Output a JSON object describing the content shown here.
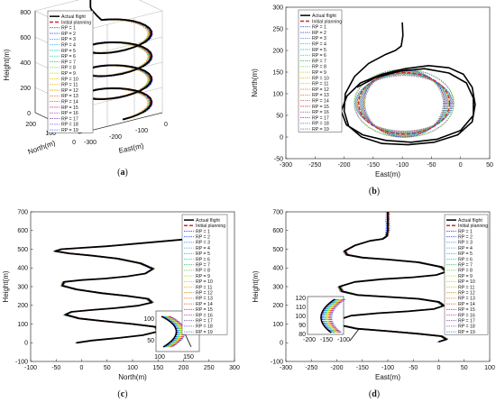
{
  "chart_data": [
    {
      "id": "a",
      "type": "line",
      "caption": "a",
      "xlabel": "East(m)",
      "ylabel": "North(m)",
      "zlabel": "Height(m)",
      "xlim": [
        -300,
        0
      ],
      "ylim": [
        0,
        200
      ],
      "zlim": [
        0,
        800
      ],
      "x_ticks": [
        "-300",
        "-200",
        "-100",
        "0"
      ],
      "y_ticks": [
        "0",
        "100",
        "200"
      ],
      "z_ticks": [
        "0",
        "200",
        "400",
        "600",
        "800"
      ],
      "legend": [
        "Actual flight",
        "Initial planning",
        "RP = 1",
        "RP = 2",
        "RP = 3",
        "RP = 4",
        "RP = 5",
        "RP = 6",
        "RP = 7",
        "RP = 8",
        "RP = 9",
        "RP = 10",
        "RP = 11",
        "RP = 12",
        "RP = 13",
        "RP = 14",
        "RP = 15",
        "RP = 16",
        "RP = 17",
        "RP = 18",
        "RP = 19"
      ],
      "legend_position": "top-left"
    },
    {
      "id": "b",
      "type": "line",
      "caption": "b",
      "xlabel": "East(m)",
      "ylabel": "North(m)",
      "xlim": [
        -300,
        50
      ],
      "ylim": [
        -50,
        300
      ],
      "x_ticks": [
        "-300",
        "-250",
        "-200",
        "-150",
        "-100",
        "-50",
        "0",
        "50"
      ],
      "y_ticks": [
        "-50",
        "0",
        "50",
        "100",
        "150",
        "200",
        "250",
        "300"
      ],
      "legend": [
        "Actual flight",
        "Initial planning",
        "RP = 1",
        "RP = 2",
        "RP = 3",
        "RP = 4",
        "RP = 5",
        "RP = 6",
        "RP = 7",
        "RP = 8",
        "RP = 9",
        "RP = 10",
        "RP = 11",
        "RP = 12",
        "RP = 13",
        "RP = 14",
        "RP = 15",
        "RP = 16",
        "RP = 17",
        "RP = 18",
        "RP = 19"
      ],
      "legend_position": "top-right",
      "actual_flight": {
        "x": [
          -100,
          -99,
          -102,
          -112,
          -130,
          -158,
          -182,
          -198,
          -200,
          -192,
          -170,
          -135,
          -90,
          -45,
          -5,
          20,
          25,
          20,
          5,
          -20,
          -55,
          -95,
          -135,
          -172,
          -195,
          -205,
          -196,
          -168,
          -128,
          -85,
          -40,
          0,
          22,
          22,
          10,
          -20,
          -62,
          -105,
          -145,
          -178
        ],
        "y": [
          265,
          235,
          210,
          200,
          190,
          170,
          140,
          100,
          60,
          25,
          0,
          -15,
          -18,
          -12,
          5,
          35,
          75,
          115,
          145,
          160,
          165,
          158,
          145,
          125,
          95,
          60,
          28,
          5,
          -8,
          -12,
          -5,
          15,
          50,
          90,
          125,
          148,
          158,
          152,
          138,
          115
        ]
      }
    },
    {
      "id": "c",
      "type": "line",
      "caption": "c",
      "xlabel": "North(m)",
      "ylabel": "Height(m)",
      "xlim": [
        -100,
        300
      ],
      "ylim": [
        -100,
        700
      ],
      "x_ticks": [
        "-100",
        "-50",
        "0",
        "50",
        "100",
        "150",
        "200",
        "250",
        "300"
      ],
      "y_ticks": [
        "-100",
        "0",
        "100",
        "200",
        "300",
        "400",
        "500",
        "600",
        "700"
      ],
      "legend": [
        "Actual flight",
        "Initial planning",
        "RP = 1",
        "RP = 2",
        "RP = 3",
        "RP = 4",
        "RP = 5",
        "RP = 6",
        "RP = 7",
        "RP = 8",
        "RP = 9",
        "RP = 10",
        "RP = 11",
        "RP = 12",
        "RP = 13",
        "RP = 14",
        "RP = 15",
        "RP = 16",
        "RP = 17",
        "RP = 18",
        "RP = 19"
      ],
      "legend_position": "top-right",
      "inset": {
        "x_ticks": [
          "100",
          "150"
        ],
        "y_ticks": [
          "50",
          "100"
        ]
      },
      "actual_flight": {
        "x": [
          270,
          265,
          240,
          200,
          150,
          100,
          50,
          0,
          -40,
          -52,
          -25,
          20,
          70,
          115,
          140,
          125,
          90,
          45,
          0,
          -35,
          -38,
          -10,
          40,
          90,
          130,
          138,
          110,
          65,
          20,
          -20,
          -32,
          -5,
          45,
          100,
          145,
          150,
          120,
          70,
          20,
          -10
        ],
        "y": [
          610,
          580,
          565,
          552,
          540,
          528,
          516,
          507,
          500,
          490,
          478,
          466,
          450,
          425,
          395,
          370,
          355,
          343,
          335,
          325,
          305,
          285,
          265,
          250,
          235,
          215,
          198,
          185,
          175,
          165,
          150,
          130,
          115,
          100,
          85,
          60,
          40,
          25,
          12,
          0
        ]
      }
    },
    {
      "id": "d",
      "type": "line",
      "caption": "d",
      "xlabel": "East(m)",
      "ylabel": "Height(m)",
      "xlim": [
        -300,
        100
      ],
      "ylim": [
        -100,
        700
      ],
      "x_ticks": [
        "-300",
        "-250",
        "-200",
        "-150",
        "-100",
        "-50",
        "0",
        "50",
        "100"
      ],
      "y_ticks": [
        "-100",
        "0",
        "100",
        "200",
        "300",
        "400",
        "500",
        "600",
        "700"
      ],
      "legend": [
        "Actual flight",
        "Initial planning",
        "RP = 1",
        "RP = 2",
        "RP = 3",
        "RP = 4",
        "RP = 5",
        "RP = 6",
        "RP = 7",
        "RP = 8",
        "RP = 9",
        "RP = 10",
        "RP = 11",
        "RP = 12",
        "RP = 13",
        "RP = 14",
        "RP = 15",
        "RP = 16",
        "RP = 17",
        "RP = 18",
        "RP = 19"
      ],
      "legend_position": "top-right",
      "inset": {
        "x_ticks": [
          "-200",
          "-150",
          "-100"
        ],
        "y_ticks": [
          "80",
          "90",
          "100",
          "110",
          "120"
        ]
      },
      "actual_flight": {
        "x": [
          -100,
          -100,
          -100,
          -102,
          -110,
          -135,
          -165,
          -185,
          -180,
          -150,
          -100,
          -40,
          5,
          15,
          -5,
          -50,
          -110,
          -165,
          -195,
          -190,
          -160,
          -100,
          -40,
          0,
          10,
          -10,
          -60,
          -120,
          -172,
          -200,
          -195,
          -160,
          -100,
          -40,
          5,
          15,
          0
        ],
        "y": [
          700,
          650,
          600,
          570,
          555,
          545,
          520,
          490,
          470,
          455,
          445,
          430,
          405,
          380,
          362,
          350,
          340,
          325,
          300,
          275,
          255,
          245,
          235,
          218,
          198,
          180,
          168,
          158,
          145,
          120,
          95,
          75,
          62,
          48,
          35,
          18,
          5
        ]
      }
    }
  ]
}
